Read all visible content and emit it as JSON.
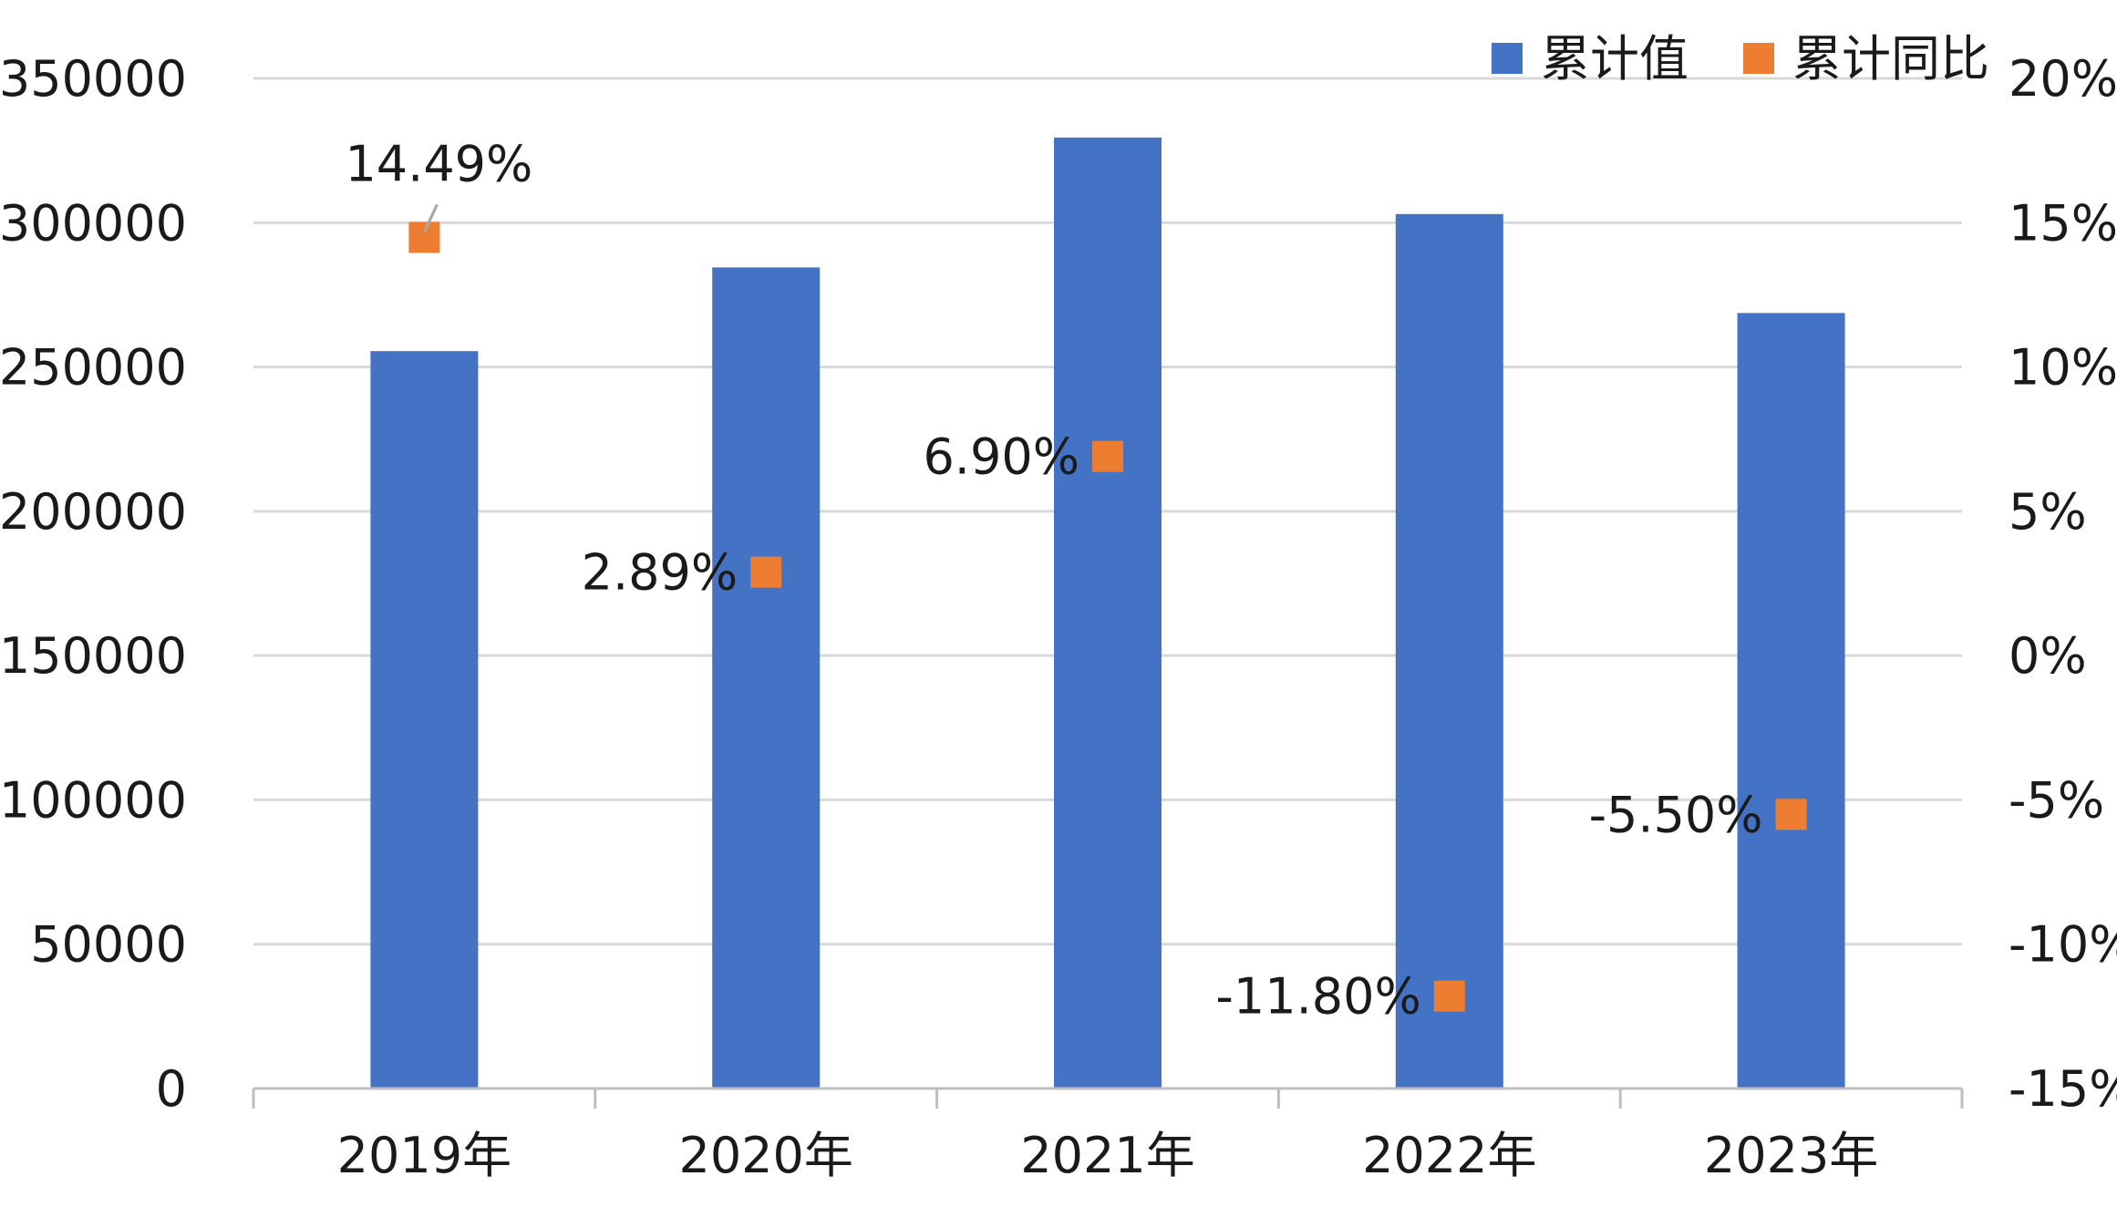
{
  "chart_data": {
    "type": "bar",
    "categories": [
      "2019年",
      "2020年",
      "2021年",
      "2022年",
      "2023年"
    ],
    "series": [
      {
        "name": "累计值",
        "type": "bar",
        "axis": "left",
        "color": "#4472C4",
        "values": [
          255500,
          284500,
          329500,
          303000,
          268700
        ]
      },
      {
        "name": "累计同比",
        "type": "scatter",
        "axis": "right",
        "color": "#ED7D31",
        "values": [
          14.49,
          2.89,
          6.9,
          -11.8,
          -5.5
        ],
        "labels": [
          "14.49%",
          "2.89%",
          "6.90%",
          "-11.80%",
          "-5.50%"
        ]
      }
    ],
    "y_left": {
      "min": 0,
      "max": 350000,
      "ticks": [
        "0",
        "50000",
        "100000",
        "150000",
        "200000",
        "250000",
        "300000",
        "350000"
      ]
    },
    "y_right": {
      "min": -15,
      "max": 20,
      "ticks": [
        "-15%",
        "-10%",
        "-5%",
        "0%",
        "5%",
        "10%",
        "15%",
        "20%"
      ]
    },
    "grid": true,
    "legend_position": "top-right",
    "colors": {
      "bar": "#4472C4",
      "marker": "#ED7D31",
      "grid": "#D9D9D9",
      "axis": "#BFBFBF",
      "text": "#1a1a1a"
    }
  }
}
